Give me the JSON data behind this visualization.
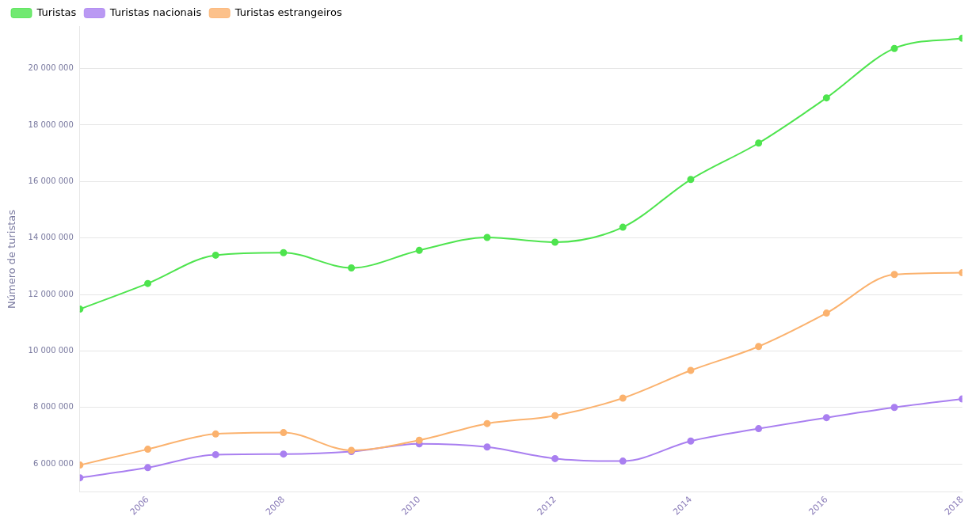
{
  "chart_data": {
    "type": "line",
    "ylabel": "Número de turistas",
    "x": [
      2005,
      2006,
      2007,
      2008,
      2009,
      2010,
      2011,
      2012,
      2013,
      2014,
      2015,
      2016,
      2017,
      2018
    ],
    "xlim": [
      2005,
      2018
    ],
    "xticks": [
      2006,
      2008,
      2010,
      2012,
      2014,
      2016,
      2018
    ],
    "ylim": [
      5000000,
      21500000
    ],
    "yticks": [
      {
        "value": 6000000,
        "label": "6 000 000"
      },
      {
        "value": 8000000,
        "label": "8 000 000"
      },
      {
        "value": 10000000,
        "label": "10 000 000"
      },
      {
        "value": 12000000,
        "label": "12 000 000"
      },
      {
        "value": 14000000,
        "label": "14 000 000"
      },
      {
        "value": 16000000,
        "label": "16 000 000"
      },
      {
        "value": 18000000,
        "label": "18 000 000"
      },
      {
        "value": 20000000,
        "label": "20 000 000"
      }
    ],
    "grid": "y",
    "legend": "top left",
    "marker": "circle",
    "line_style": "solid",
    "series": [
      {
        "name": "Turistas",
        "color": "#4ee44e",
        "values": [
          11480000,
          12390000,
          13390000,
          13480000,
          12940000,
          13560000,
          14020000,
          13850000,
          14380000,
          16070000,
          17360000,
          18960000,
          20710000,
          21070000
        ]
      },
      {
        "name": "Turistas nacionais",
        "color": "#a97ff0",
        "values": [
          5510000,
          5870000,
          6330000,
          6350000,
          6440000,
          6710000,
          6600000,
          6190000,
          6100000,
          6810000,
          7250000,
          7640000,
          8000000,
          8300000
        ]
      },
      {
        "name": "Turistas estrangeiros",
        "color": "#fbb26e",
        "values": [
          5960000,
          6520000,
          7060000,
          7110000,
          6480000,
          6840000,
          7430000,
          7710000,
          8330000,
          9310000,
          10160000,
          11340000,
          12710000,
          12770000
        ]
      }
    ]
  }
}
